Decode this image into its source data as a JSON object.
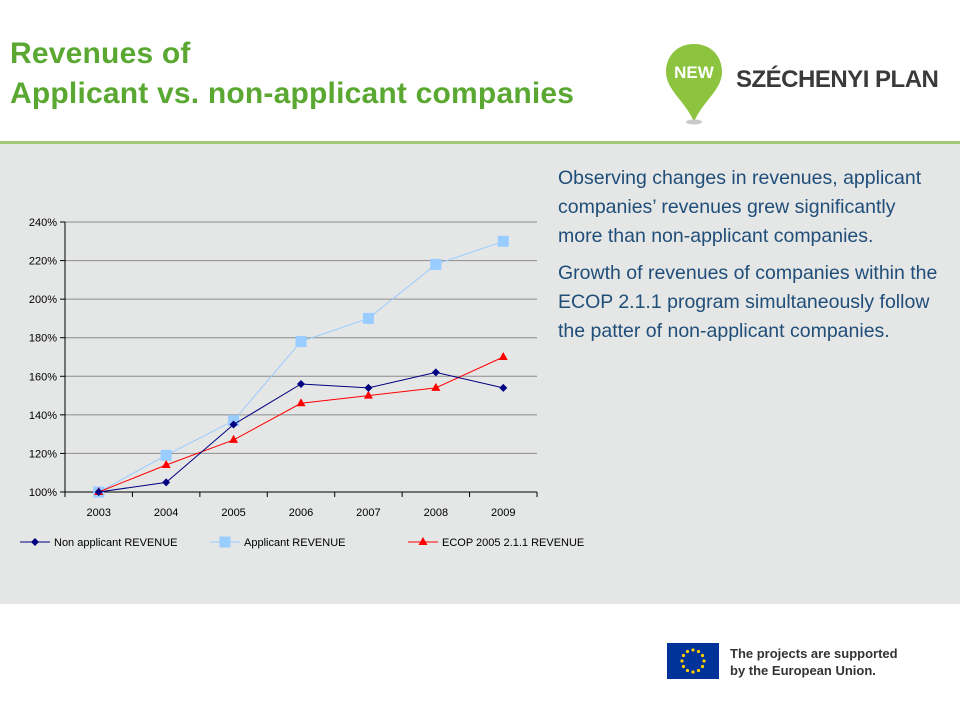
{
  "header": {
    "title_line1": "Revenues of",
    "title_line2": "Applicant vs. non-applicant companies",
    "logo_badge": "NEW",
    "logo_word": "SZÉCHENYI PLAN"
  },
  "body_text": {
    "paragraph1": "Observing changes in revenues, applicant companies’ revenues grew significantly more than non-applicant companies.",
    "paragraph2": "Growth of revenues of companies within the ECOP 2.1.1 program simultaneously follow the patter of non-applicant companies."
  },
  "footer": {
    "eu_line1": "The projects are supported",
    "eu_line2": "by the European Union."
  },
  "colors": {
    "title_green": "#5aa832",
    "body_blue": "#1f4e79",
    "panel_grey": "#e5e6e6",
    "non_applicant": "#000080",
    "applicant": "#99ccff",
    "ecop": "#ff0000"
  },
  "chart_data": {
    "type": "line",
    "title": "",
    "xlabel": "",
    "ylabel": "",
    "categories": [
      "2003",
      "2004",
      "2005",
      "2006",
      "2007",
      "2008",
      "2009"
    ],
    "ylim": [
      100,
      240
    ],
    "yticks": [
      "100%",
      "120%",
      "140%",
      "160%",
      "180%",
      "200%",
      "220%",
      "240%"
    ],
    "grid": true,
    "legend_position": "bottom",
    "series": [
      {
        "name": "Non applicant REVENUE",
        "marker": "diamond",
        "color": "#000080",
        "values": [
          100,
          105,
          135,
          156,
          154,
          162,
          154
        ]
      },
      {
        "name": "Applicant REVENUE",
        "marker": "square",
        "color": "#99ccff",
        "values": [
          100,
          119,
          137,
          178,
          190,
          218,
          230
        ]
      },
      {
        "name": "ECOP 2005 2.1.1 REVENUE",
        "marker": "triangle",
        "color": "#ff0000",
        "values": [
          100,
          114,
          127,
          146,
          150,
          154,
          170
        ]
      }
    ]
  }
}
